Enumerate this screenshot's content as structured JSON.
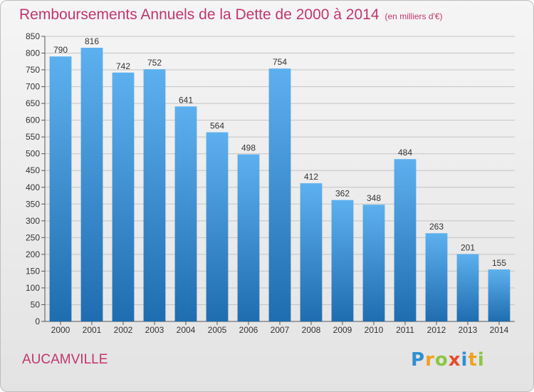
{
  "header": {
    "title": "Remboursements Annuels de la Dette de 2000 à 2014",
    "unit": "(en milliers d'€)"
  },
  "footer": {
    "city": "AUCAMVILLE",
    "brand": "Proxiti"
  },
  "colors": {
    "title": "#c1366e",
    "bar_top": "#5db0ee",
    "bar_bottom": "#1f6db0"
  },
  "chart_data": {
    "type": "bar",
    "title": "Remboursements Annuels de la Dette de 2000 à 2014",
    "subtitle": "(en milliers d'€)",
    "xlabel": "",
    "ylabel": "",
    "categories": [
      "2000",
      "2001",
      "2002",
      "2003",
      "2004",
      "2005",
      "2006",
      "2007",
      "2008",
      "2009",
      "2010",
      "2011",
      "2012",
      "2013",
      "2014"
    ],
    "values": [
      790,
      816,
      742,
      752,
      641,
      564,
      498,
      754,
      412,
      362,
      348,
      484,
      263,
      201,
      155
    ],
    "ylim": [
      0,
      850
    ],
    "yticks": [
      0,
      50,
      100,
      150,
      200,
      250,
      300,
      350,
      400,
      450,
      500,
      550,
      600,
      650,
      700,
      750,
      800,
      850
    ],
    "grid": true,
    "legend": "none",
    "data_labels": true
  }
}
